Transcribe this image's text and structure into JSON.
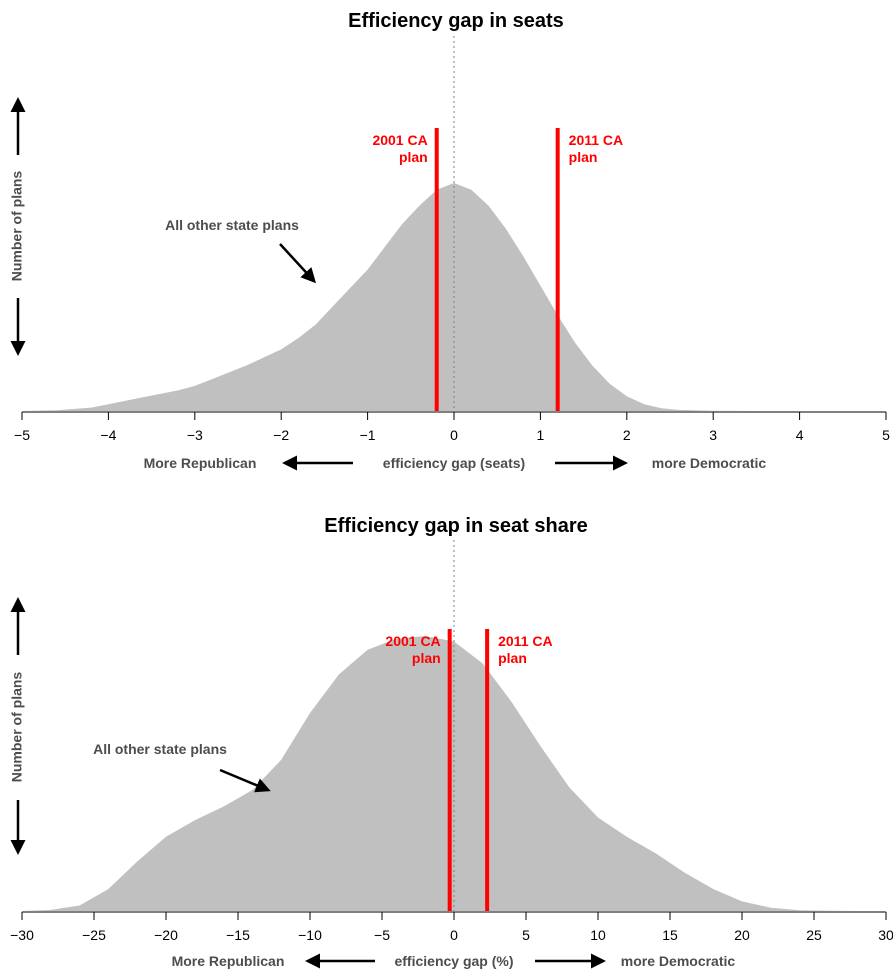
{
  "chart_data": [
    {
      "type": "area",
      "title": "Efficiency gap in seats",
      "xlim": [
        -5,
        5
      ],
      "xticks": [
        "−5",
        "−4",
        "−3",
        "−2",
        "−1",
        "0",
        "1",
        "2",
        "3",
        "4",
        "5"
      ],
      "xtick_values": [
        -5,
        -4,
        -3,
        -2,
        -1,
        0,
        1,
        2,
        3,
        4,
        5
      ],
      "xlabel": {
        "left": "More Republican",
        "center": "efficiency gap (seats)",
        "right": "more Democratic"
      },
      "ylabel": "Number of plans",
      "density_max": 1.0,
      "series": [
        {
          "x": [
            -5,
            -4.6,
            -4.2,
            -4.0,
            -3.8,
            -3.6,
            -3.4,
            -3.2,
            -3.0,
            -2.8,
            -2.6,
            -2.4,
            -2.2,
            -2.0,
            -1.8,
            -1.6,
            -1.4,
            -1.2,
            -1.0,
            -0.8,
            -0.6,
            -0.4,
            -0.2,
            0.0,
            0.2,
            0.4,
            0.6,
            0.8,
            1.0,
            1.2,
            1.4,
            1.6,
            1.8,
            2.0,
            2.2,
            2.4,
            2.6,
            3.0,
            3.5,
            5.0
          ],
          "y": [
            0.0,
            0.003,
            0.015,
            0.03,
            0.045,
            0.06,
            0.075,
            0.09,
            0.11,
            0.14,
            0.17,
            0.2,
            0.235,
            0.27,
            0.32,
            0.38,
            0.46,
            0.54,
            0.62,
            0.72,
            0.82,
            0.9,
            0.97,
            1.0,
            0.97,
            0.9,
            0.8,
            0.68,
            0.55,
            0.42,
            0.3,
            0.2,
            0.12,
            0.065,
            0.03,
            0.012,
            0.005,
            0.001,
            0.0,
            0.0
          ]
        }
      ],
      "reference_lines": [
        {
          "x": -0.2,
          "label": "2001 CA\nplan",
          "side": "left"
        },
        {
          "x": 1.2,
          "label": "2011 CA\nplan",
          "side": "right"
        }
      ],
      "annotation": "All other state plans",
      "colors": {
        "fill": "#c0c0c0",
        "reference": "#ff0000",
        "zero_line": "#808080"
      }
    },
    {
      "type": "area",
      "title": "Efficiency gap in seat share",
      "xlim": [
        -30,
        30
      ],
      "xticks": [
        "−30",
        "−25",
        "−20",
        "−15",
        "−10",
        "−5",
        "0",
        "5",
        "10",
        "15",
        "20",
        "25",
        "30"
      ],
      "xtick_values": [
        -30,
        -25,
        -20,
        -15,
        -10,
        -5,
        0,
        5,
        10,
        15,
        20,
        25,
        30
      ],
      "xlabel": {
        "left": "More Republican",
        "center": "efficiency gap (%)",
        "right": "more Democratic"
      },
      "ylabel": "Number of plans",
      "density_max": 1.0,
      "series": [
        {
          "x": [
            -30,
            -28,
            -26,
            -24,
            -22,
            -20,
            -18,
            -16,
            -14,
            -12,
            -10,
            -8,
            -6,
            -4,
            -2,
            0,
            2,
            4,
            6,
            8,
            10,
            12,
            14,
            16,
            18,
            20,
            22,
            24,
            26,
            28,
            30
          ],
          "y": [
            0.0,
            0.004,
            0.02,
            0.08,
            0.18,
            0.27,
            0.33,
            0.38,
            0.44,
            0.55,
            0.72,
            0.86,
            0.95,
            0.99,
            1.0,
            0.98,
            0.9,
            0.76,
            0.6,
            0.45,
            0.34,
            0.27,
            0.21,
            0.14,
            0.08,
            0.035,
            0.012,
            0.003,
            0.001,
            0.0,
            0.0
          ]
        }
      ],
      "reference_lines": [
        {
          "x": -0.3,
          "label": "2001 CA\nplan",
          "side": "left"
        },
        {
          "x": 2.3,
          "label": "2011 CA\nplan",
          "side": "right"
        }
      ],
      "annotation": "All other state plans",
      "colors": {
        "fill": "#c0c0c0",
        "reference": "#ff0000",
        "zero_line": "#808080"
      }
    }
  ]
}
